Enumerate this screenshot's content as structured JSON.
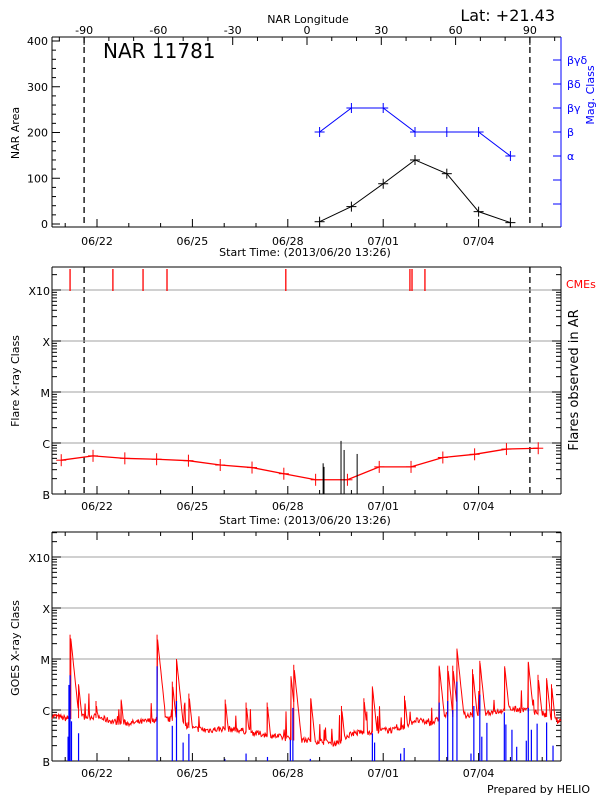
{
  "chart_data": [
    {
      "type": "line",
      "title": "NAR 11781",
      "latitude_label": "Lat: +21.43",
      "top_axis_label": "NAR Longitude",
      "top_ticks": [
        "-90",
        "-60",
        "-30",
        "0",
        "30",
        "60",
        "90"
      ],
      "xlabel": "Start Time: (2013/06/20 13:26)",
      "x_ticks": [
        "06/22",
        "06/25",
        "06/28",
        "07/01",
        "07/04"
      ],
      "ylabel": "NAR Area",
      "ylim": [
        0,
        400
      ],
      "y_ticks": [
        "0",
        "100",
        "200",
        "300",
        "400"
      ],
      "y2label": "Mag. Class",
      "y2_ticks": [
        "α",
        "β",
        "βγ",
        "βδ",
        "βγδ"
      ],
      "limb_longitudes": [
        -90,
        90
      ],
      "x": [
        "06/29 00:00",
        "06/30 00:00",
        "07/01 00:00",
        "07/02 00:00",
        "07/03 00:00",
        "07/04 00:00",
        "07/05 00:00"
      ],
      "series": [
        {
          "name": "NAR Area",
          "color": "#000000",
          "values": [
            5,
            38,
            88,
            140,
            110,
            27,
            3
          ]
        },
        {
          "name": "Mag. Class",
          "color": "#0000ff",
          "values": [
            "β",
            "βγ",
            "βγ",
            "β",
            "β",
            "β",
            "α"
          ]
        }
      ]
    },
    {
      "type": "bar",
      "xlabel": "Start Time: (2013/06/20 13:26)",
      "x_ticks": [
        "06/22",
        "06/25",
        "06/28",
        "07/01",
        "07/04"
      ],
      "ylabel": "Flare X-ray Class",
      "y_ticks": [
        "B",
        "C",
        "M",
        "X",
        "X10"
      ],
      "y_scale": "log",
      "y2label": "Flares observed in AR",
      "cme_label": "CMEs",
      "colors": {
        "cme": "#ff0000",
        "flare": "#000000",
        "background": "#ff0000",
        "grid": "#a0a0a0"
      },
      "cmes": [
        "06/21 03:40",
        "06/22 12:00",
        "06/23 10:45",
        "06/24 04:50",
        "06/27 22:30",
        "07/01 20:10",
        "07/01 21:45",
        "07/02 07:30"
      ],
      "background_x": [
        "06/20 21:00",
        "06/21 21:00",
        "06/22 21:00",
        "06/23 21:00",
        "06/24 21:00",
        "06/25 21:00",
        "06/26 21:00",
        "06/27 21:00",
        "06/28 21:00",
        "06/29 21:00",
        "06/30 21:00",
        "07/01 21:00",
        "07/02 21:00",
        "07/03 21:00",
        "07/04 21:00",
        "07/05 21:00"
      ],
      "background_flux": [
        4.6e-07,
        5.6e-07,
        5e-07,
        4.8e-07,
        4.5e-07,
        3.7e-07,
        3.3e-07,
        2.5e-07,
        1.9e-07,
        1.9e-07,
        3.4e-07,
        3.4e-07,
        5.2e-07,
        6e-07,
        7.6e-07,
        7.9e-07
      ],
      "flares": [
        {
          "time": "06/29 02:40",
          "flux": 4e-07
        },
        {
          "time": "06/29 03:20",
          "flux": 3.4e-07
        },
        {
          "time": "06/29 16:10",
          "flux": 1.1e-06
        },
        {
          "time": "06/29 18:30",
          "flux": 7.3e-07
        },
        {
          "time": "06/30 04:20",
          "flux": 6.1e-07
        }
      ]
    },
    {
      "type": "line",
      "xlabel": "",
      "x_ticks": [
        "06/22",
        "06/25",
        "06/28",
        "07/01",
        "07/04"
      ],
      "ylabel": "GOES X-ray Class",
      "y_ticks": [
        "B",
        "C",
        "M",
        "X",
        "X10"
      ],
      "y_scale": "log",
      "colors": {
        "long": "#ff0000",
        "short": "#0000ff"
      },
      "long_baseline_x": [
        "06/20 12:00",
        "06/21 00:00",
        "06/21 12:00",
        "06/22 00:00",
        "06/22 12:00",
        "06/23 00:00",
        "06/23 12:00",
        "06/24 00:00",
        "06/24 12:00",
        "06/25 00:00",
        "06/25 12:00",
        "06/26 00:00",
        "06/26 12:00",
        "06/27 00:00",
        "06/27 12:00",
        "06/28 00:00",
        "06/28 12:00",
        "06/29 00:00",
        "06/29 12:00",
        "06/30 00:00",
        "06/30 12:00",
        "07/01 00:00",
        "07/01 12:00",
        "07/02 00:00",
        "07/02 12:00",
        "07/03 00:00",
        "07/03 12:00",
        "07/04 00:00",
        "07/04 12:00",
        "07/05 00:00",
        "07/05 12:00",
        "07/06 00:00",
        "07/06 12:00"
      ],
      "long_baseline_flux": [
        7.5e-07,
        6.5e-07,
        7e-07,
        7e-07,
        5.6e-07,
        5.2e-07,
        5.6e-07,
        6.5e-07,
        6e-07,
        4.1e-07,
        3.8e-07,
        4.1e-07,
        3.8e-07,
        3.3e-07,
        3e-07,
        2.6e-07,
        2.4e-07,
        2.3e-07,
        2.1e-07,
        3.3e-07,
        3.5e-07,
        3.8e-07,
        3.8e-07,
        6e-07,
        5.2e-07,
        7.5e-07,
        7e-07,
        8.1e-07,
        8.7e-07,
        1e-06,
        9.4e-07,
        8.1e-07,
        5.6e-07
      ],
      "long_peaks": [
        [
          "06/21 03:40",
          3e-05
        ],
        [
          "06/21 04:15",
          2.5e-05
        ],
        [
          "06/21 10:05",
          3.2e-06
        ],
        [
          "06/21 23:15",
          1.5e-06
        ],
        [
          "06/22 18:15",
          1.6e-06
        ],
        [
          "06/23 21:20",
          3e-05
        ],
        [
          "06/24 08:50",
          3.6e-06
        ],
        [
          "06/24 12:00",
          1e-05
        ],
        [
          "06/24 21:20",
          2.1e-06
        ],
        [
          "06/26 00:45",
          1.6e-06
        ],
        [
          "06/26 16:30",
          1.4e-06
        ],
        [
          "06/27 08:25",
          1.4e-06
        ],
        [
          "06/28 02:25",
          4.6e-06
        ],
        [
          "06/28 04:30",
          7.7e-06
        ],
        [
          "06/28 17:20",
          1.7e-06
        ],
        [
          "06/29 16:30",
          1.2e-06
        ],
        [
          "06/30 09:25",
          1.7e-06
        ],
        [
          "06/30 15:50",
          2.9e-06
        ],
        [
          "07/01 16:05",
          1.9e-06
        ],
        [
          "07/02 18:15",
          7.4e-06
        ],
        [
          "07/03 00:40",
          7.4e-06
        ],
        [
          "07/03 04:30",
          7.4e-06
        ],
        [
          "07/03 07:40",
          1.6e-05
        ],
        [
          "07/03 19:25",
          6.3e-06
        ],
        [
          "07/04 00:55",
          9.2e-06
        ],
        [
          "07/04 19:40",
          7.2e-06
        ],
        [
          "07/05 13:30",
          8.8e-06
        ],
        [
          "07/05 20:50",
          4.9e-06
        ],
        [
          "07/06 03:20",
          4.2e-06
        ],
        [
          "07/06 07:00",
          3.2e-06
        ]
      ],
      "short_peaks": [
        [
          "06/21 02:10",
          3e-07
        ],
        [
          "06/21 02:50",
          3.1e-06
        ],
        [
          "06/21 03:40",
          4.8e-06
        ],
        [
          "06/21 04:45",
          6e-07
        ],
        [
          "06/21 10:05",
          3.5e-07
        ],
        [
          "06/23 21:20",
          7.2e-06
        ],
        [
          "06/24 08:50",
          4.9e-07
        ],
        [
          "06/24 12:00",
          1.5e-06
        ],
        [
          "06/24 17:00",
          2.3e-07
        ],
        [
          "06/24 21:20",
          3.4e-07
        ],
        [
          "06/26 00:30",
          1.1e-07
        ],
        [
          "06/26 16:30",
          1.4e-07
        ],
        [
          "06/27 08:40",
          1.2e-07
        ],
        [
          "06/28 01:55",
          2.6e-07
        ],
        [
          "06/28 03:50",
          1.1e-06
        ],
        [
          "06/28 17:00",
          1.1e-07
        ],
        [
          "06/30 15:50",
          3.5e-07
        ],
        [
          "06/30 17:30",
          2.3e-07
        ],
        [
          "07/01 13:10",
          1.4e-07
        ],
        [
          "07/01 15:50",
          1.8e-07
        ],
        [
          "07/02 18:15",
          1.4e-06
        ],
        [
          "07/03 00:40",
          1.5e-06
        ],
        [
          "07/03 04:30",
          1e-06
        ],
        [
          "07/03 07:40",
          3.6e-06
        ],
        [
          "07/03 18:15",
          1.4e-07
        ],
        [
          "07/03 20:25",
          1.2e-06
        ],
        [
          "07/04 00:55",
          2e-06
        ],
        [
          "07/04 02:25",
          3e-07
        ],
        [
          "07/04 06:15",
          5.6e-07
        ],
        [
          "07/04 19:25",
          9e-07
        ],
        [
          "07/04 20:35",
          5.2e-07
        ],
        [
          "07/05 01:10",
          4.1e-07
        ],
        [
          "07/05 04:45",
          1.9e-07
        ],
        [
          "07/05 12:00",
          2.5e-07
        ],
        [
          "07/05 13:30",
          1.1e-06
        ],
        [
          "07/05 15:50",
          4.1e-07
        ],
        [
          "07/05 20:10",
          5.4e-07
        ],
        [
          "07/06 03:20",
          5.7e-07
        ],
        [
          "07/06 08:10",
          2e-07
        ]
      ],
      "footer": "Prepared by HELIO"
    }
  ]
}
